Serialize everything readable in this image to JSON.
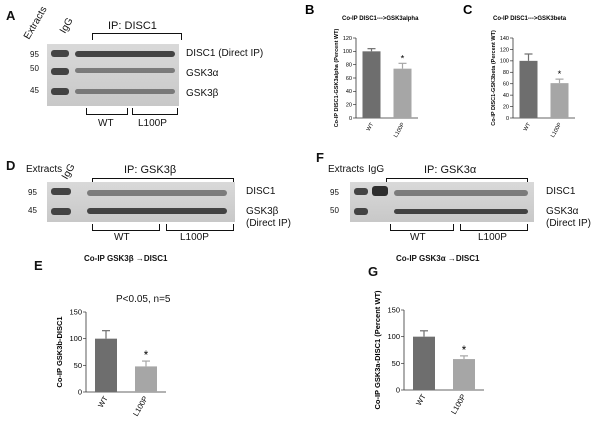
{
  "panels": {
    "A": {
      "label": "A",
      "extracts": "Extracts",
      "igg": "IgG",
      "ip": "IP: DISC1",
      "mw": [
        "95",
        "50",
        "45"
      ],
      "bands": [
        "DISC1 (Direct IP)",
        "GSK3α",
        "GSK3β"
      ],
      "groups": [
        "WT",
        "L100P"
      ]
    },
    "D": {
      "label": "D",
      "extracts": "Extracts",
      "igg": "IgG",
      "ip": "IP: GSK3β",
      "mw": [
        "95",
        "45"
      ],
      "bands": [
        "DISC1",
        "GSK3β",
        "(Direct IP)"
      ],
      "groups": [
        "WT",
        "L100P"
      ]
    },
    "F": {
      "label": "F",
      "extracts": "Extracts",
      "igg": "IgG",
      "ip": "IP: GSK3α",
      "mw": [
        "95",
        "50"
      ],
      "bands": [
        "DISC1",
        "GSK3α",
        "(Direct IP)"
      ],
      "groups": [
        "WT",
        "L100P"
      ]
    },
    "E_title": "Co-IP GSK3β →DISC1",
    "E_annot": "P<0.05, n=5",
    "G_title": "Co-IP GSK3α →DISC1"
  },
  "chart_data": [
    {
      "id": "B",
      "label": "B",
      "type": "bar",
      "title": "Co-IP DISC1--->GSK3alpha",
      "ylabel": "Co-IP DISC1-GSK3alpha (Percent WT)",
      "categories": [
        "WT",
        "L100P"
      ],
      "values": [
        100,
        74
      ],
      "errors": [
        4,
        8
      ],
      "ylim": [
        0,
        120
      ],
      "yticks": [
        0,
        20,
        40,
        60,
        80,
        100,
        120
      ],
      "significance": [
        "",
        "*"
      ],
      "colors": [
        "#6e6e6e",
        "#a6a6a6"
      ]
    },
    {
      "id": "C",
      "label": "C",
      "type": "bar",
      "title": "Co-IP DISC1--->GSK3beta",
      "ylabel": "Co-IP DISC1-GSK3beta (Percent WT)",
      "categories": [
        "WT",
        "L100P"
      ],
      "values": [
        100,
        61
      ],
      "errors": [
        12,
        7
      ],
      "ylim": [
        0,
        140
      ],
      "yticks": [
        0,
        20,
        40,
        60,
        80,
        100,
        120,
        140
      ],
      "significance": [
        "",
        "*"
      ],
      "colors": [
        "#6e6e6e",
        "#a6a6a6"
      ]
    },
    {
      "id": "E",
      "label": "E",
      "type": "bar",
      "title": "",
      "ylabel": "Co-IP GSK3b-DISC1",
      "categories": [
        "WT",
        "L100P"
      ],
      "values": [
        100,
        48
      ],
      "errors": [
        15,
        10
      ],
      "ylim": [
        0,
        150
      ],
      "yticks": [
        0,
        50,
        100,
        150
      ],
      "significance": [
        "",
        "*"
      ],
      "colors": [
        "#6e6e6e",
        "#a6a6a6"
      ]
    },
    {
      "id": "G",
      "label": "G",
      "type": "bar",
      "title": "",
      "ylabel": "Co-IP GSK3a-DISC1 (Percent WT)",
      "categories": [
        "WT",
        "L100P"
      ],
      "values": [
        100,
        58
      ],
      "errors": [
        11,
        6
      ],
      "ylim": [
        0,
        150
      ],
      "yticks": [
        0,
        50,
        100,
        150
      ],
      "significance": [
        "",
        "*"
      ],
      "colors": [
        "#6e6e6e",
        "#a6a6a6"
      ]
    }
  ]
}
